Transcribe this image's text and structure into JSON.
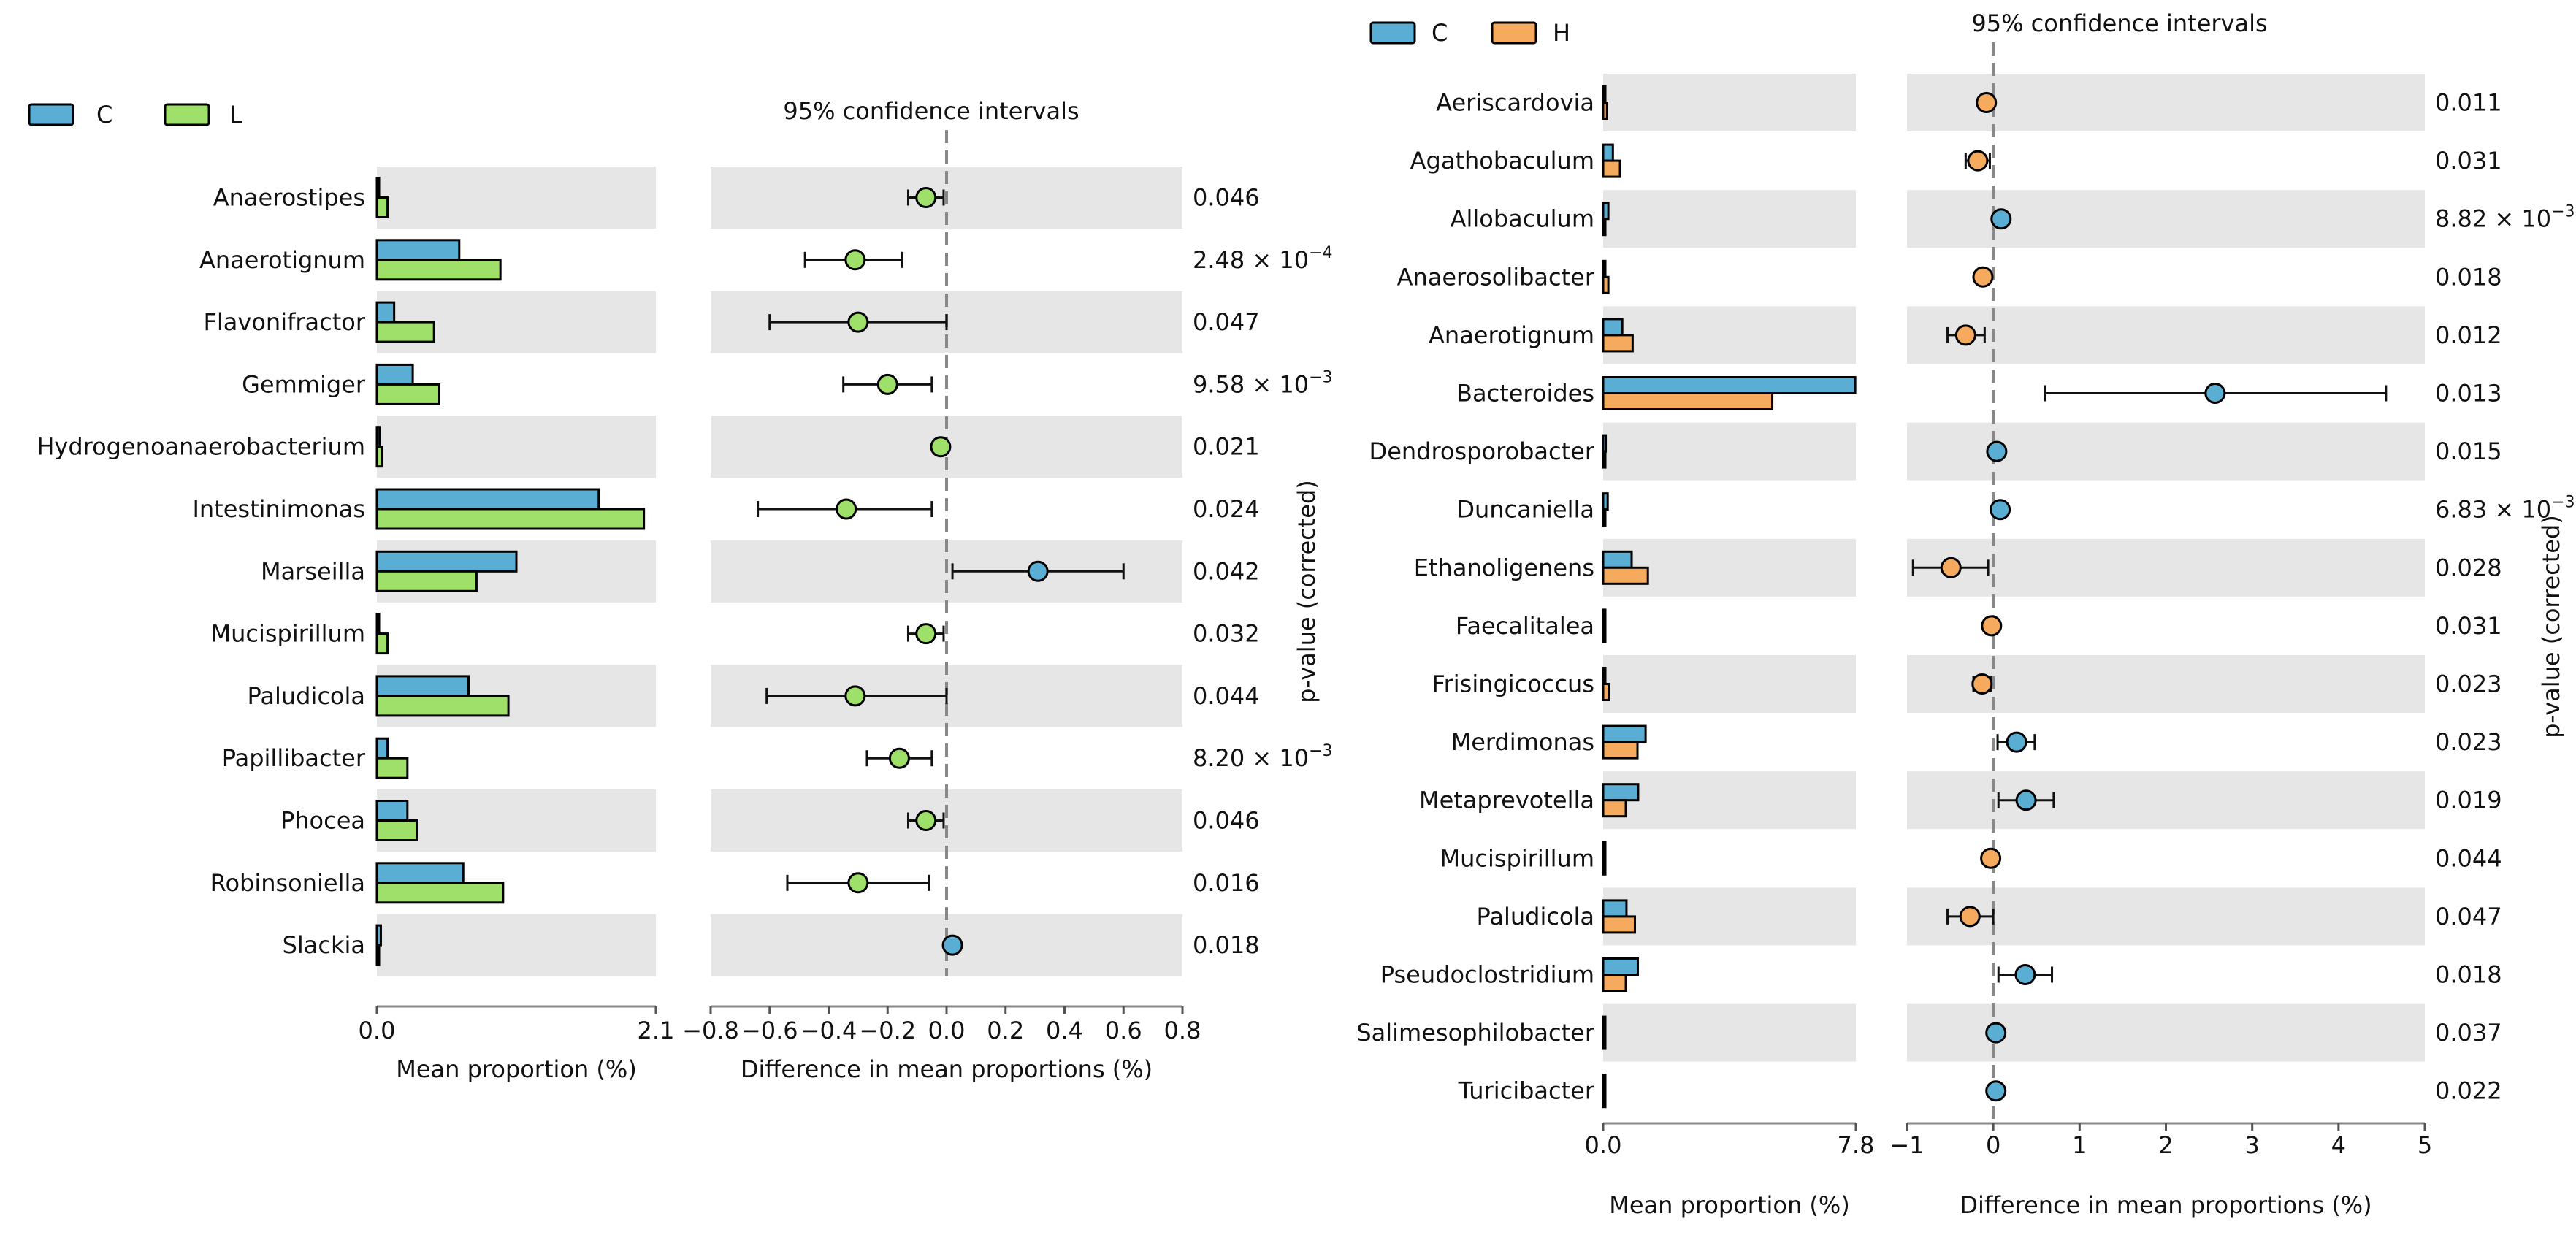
{
  "chart_data": [
    {
      "type": "extended_error_bar",
      "groups": [
        {
          "name": "C",
          "color": "#5aaed4"
        },
        {
          "name": "L",
          "color": "#9ee06a"
        }
      ],
      "ci_title": "95% confidence intervals",
      "bar_xlabel": "Mean proportion (%)",
      "diff_xlabel": "Difference in mean proportions (%)",
      "pvalue_label": "p-value (corrected)",
      "bar_xlim": [
        0.0,
        2.1
      ],
      "bar_ticks": [
        "0.0",
        "2.1"
      ],
      "diff_xlim": [
        -0.8,
        0.8
      ],
      "diff_ticks": [
        "−0.8",
        "−0.6",
        "−0.4",
        "−0.2",
        "0.0",
        "0.2",
        "0.4",
        "0.6",
        "0.8"
      ],
      "diff_tick_values": [
        -0.8,
        -0.6,
        -0.4,
        -0.2,
        0.0,
        0.2,
        0.4,
        0.6,
        0.8
      ],
      "rows": [
        {
          "name": "Anaerostipes",
          "g1": 0.01,
          "g2": 0.08,
          "diff": -0.07,
          "lo": -0.13,
          "hi": -0.01,
          "p_base": "0.046",
          "p_exp": ""
        },
        {
          "name": "Anaerotignum",
          "g1": 0.62,
          "g2": 0.93,
          "diff": -0.31,
          "lo": -0.48,
          "hi": -0.15,
          "p_base": "2.48 × 10",
          "p_exp": "−4"
        },
        {
          "name": "Flavonifractor",
          "g1": 0.13,
          "g2": 0.43,
          "diff": -0.3,
          "lo": -0.6,
          "hi": 0.0,
          "p_base": "0.047",
          "p_exp": ""
        },
        {
          "name": "Gemmiger",
          "g1": 0.27,
          "g2": 0.47,
          "diff": -0.2,
          "lo": -0.35,
          "hi": -0.05,
          "p_base": "9.58 × 10",
          "p_exp": "−3"
        },
        {
          "name": "Hydrogenoanaerobacterium",
          "g1": 0.02,
          "g2": 0.04,
          "diff": -0.02,
          "lo": -0.04,
          "hi": 0.0,
          "p_base": "0.021",
          "p_exp": ""
        },
        {
          "name": "Intestinimonas",
          "g1": 1.67,
          "g2": 2.01,
          "diff": -0.34,
          "lo": -0.64,
          "hi": -0.05,
          "p_base": "0.024",
          "p_exp": ""
        },
        {
          "name": "Marseilla",
          "g1": 1.05,
          "g2": 0.75,
          "diff": 0.31,
          "lo": 0.02,
          "hi": 0.6,
          "p_base": "0.042",
          "p_exp": ""
        },
        {
          "name": "Mucispirillum",
          "g1": 0.01,
          "g2": 0.08,
          "diff": -0.07,
          "lo": -0.13,
          "hi": -0.01,
          "p_base": "0.032",
          "p_exp": ""
        },
        {
          "name": "Paludicola",
          "g1": 0.69,
          "g2": 0.99,
          "diff": -0.31,
          "lo": -0.61,
          "hi": 0.0,
          "p_base": "0.044",
          "p_exp": ""
        },
        {
          "name": "Papillibacter",
          "g1": 0.08,
          "g2": 0.23,
          "diff": -0.16,
          "lo": -0.27,
          "hi": -0.05,
          "p_base": "8.20 × 10",
          "p_exp": "−3"
        },
        {
          "name": "Phocea",
          "g1": 0.23,
          "g2": 0.3,
          "diff": -0.07,
          "lo": -0.13,
          "hi": -0.01,
          "p_base": "0.046",
          "p_exp": ""
        },
        {
          "name": "Robinsoniella",
          "g1": 0.65,
          "g2": 0.95,
          "diff": -0.3,
          "lo": -0.54,
          "hi": -0.06,
          "p_base": "0.016",
          "p_exp": ""
        },
        {
          "name": "Slackia",
          "g1": 0.03,
          "g2": 0.0,
          "diff": 0.02,
          "lo": 0.02,
          "hi": 0.02,
          "p_base": "0.018",
          "p_exp": ""
        }
      ]
    },
    {
      "type": "extended_error_bar",
      "groups": [
        {
          "name": "C",
          "color": "#5aaed4"
        },
        {
          "name": "H",
          "color": "#f5aa5e"
        }
      ],
      "ci_title": "95% confidence intervals",
      "bar_xlabel": "Mean proportion (%)",
      "diff_xlabel": "Difference in mean proportions (%)",
      "pvalue_label": "p-value (corrected)",
      "bar_xlim": [
        0.0,
        7.8
      ],
      "bar_ticks": [
        "0.0",
        "7.8"
      ],
      "diff_xlim": [
        -1,
        5
      ],
      "diff_ticks": [
        "−1",
        "0",
        "1",
        "2",
        "3",
        "4",
        "5"
      ],
      "diff_tick_values": [
        -1,
        0,
        1,
        2,
        3,
        4,
        5
      ],
      "rows": [
        {
          "name": "Aeriscardovia",
          "g1": 0.02,
          "g2": 0.12,
          "diff": -0.08,
          "lo": -0.08,
          "hi": -0.08,
          "p_base": "0.011",
          "p_exp": ""
        },
        {
          "name": "Agathobaculum",
          "g1": 0.3,
          "g2": 0.52,
          "diff": -0.18,
          "lo": -0.32,
          "hi": -0.04,
          "p_base": "0.031",
          "p_exp": ""
        },
        {
          "name": "Allobaculum",
          "g1": 0.16,
          "g2": 0.0,
          "diff": 0.09,
          "lo": 0.09,
          "hi": 0.09,
          "p_base": "8.82 × 10",
          "p_exp": "−3"
        },
        {
          "name": "Anaerosolibacter",
          "g1": 0.05,
          "g2": 0.16,
          "diff": -0.12,
          "lo": -0.18,
          "hi": -0.06,
          "p_base": "0.018",
          "p_exp": ""
        },
        {
          "name": "Anaerotignum",
          "g1": 0.59,
          "g2": 0.91,
          "diff": -0.32,
          "lo": -0.53,
          "hi": -0.1,
          "p_base": "0.012",
          "p_exp": ""
        },
        {
          "name": "Bacteroides",
          "g1": 7.78,
          "g2": 5.22,
          "diff": 2.57,
          "lo": 0.6,
          "hi": 4.55,
          "p_base": "0.013",
          "p_exp": ""
        },
        {
          "name": "Dendrosporobacter",
          "g1": 0.08,
          "g2": 0.0,
          "diff": 0.04,
          "lo": 0.04,
          "hi": 0.04,
          "p_base": "0.015",
          "p_exp": ""
        },
        {
          "name": "Duncaniella",
          "g1": 0.14,
          "g2": 0.0,
          "diff": 0.08,
          "lo": 0.08,
          "hi": 0.08,
          "p_base": "6.83 × 10",
          "p_exp": "−3"
        },
        {
          "name": "Ethanoligenens",
          "g1": 0.88,
          "g2": 1.38,
          "diff": -0.49,
          "lo": -0.93,
          "hi": -0.06,
          "p_base": "0.028",
          "p_exp": ""
        },
        {
          "name": "Faecalitalea",
          "g1": 0.0,
          "g2": 0.04,
          "diff": -0.02,
          "lo": -0.02,
          "hi": -0.02,
          "p_base": "0.031",
          "p_exp": ""
        },
        {
          "name": "Frisingicoccus",
          "g1": 0.03,
          "g2": 0.17,
          "diff": -0.13,
          "lo": -0.23,
          "hi": -0.03,
          "p_base": "0.023",
          "p_exp": ""
        },
        {
          "name": "Merdimonas",
          "g1": 1.31,
          "g2": 1.06,
          "diff": 0.27,
          "lo": 0.05,
          "hi": 0.48,
          "p_base": "0.023",
          "p_exp": ""
        },
        {
          "name": "Metaprevotella",
          "g1": 1.08,
          "g2": 0.7,
          "diff": 0.38,
          "lo": 0.06,
          "hi": 0.7,
          "p_base": "0.019",
          "p_exp": ""
        },
        {
          "name": "Mucispirillum",
          "g1": 0.0,
          "g2": 0.04,
          "diff": -0.03,
          "lo": -0.03,
          "hi": -0.03,
          "p_base": "0.044",
          "p_exp": ""
        },
        {
          "name": "Paludicola",
          "g1": 0.72,
          "g2": 0.98,
          "diff": -0.27,
          "lo": -0.53,
          "hi": 0.0,
          "p_base": "0.047",
          "p_exp": ""
        },
        {
          "name": "Pseudoclostridium",
          "g1": 1.07,
          "g2": 0.7,
          "diff": 0.37,
          "lo": 0.06,
          "hi": 0.68,
          "p_base": "0.018",
          "p_exp": ""
        },
        {
          "name": "Salimesophilobacter",
          "g1": 0.02,
          "g2": 0.0,
          "diff": 0.03,
          "lo": 0.03,
          "hi": 0.03,
          "p_base": "0.037",
          "p_exp": ""
        },
        {
          "name": "Turicibacter",
          "g1": 0.04,
          "g2": 0.0,
          "diff": 0.03,
          "lo": 0.03,
          "hi": 0.03,
          "p_base": "0.022",
          "p_exp": ""
        }
      ]
    }
  ]
}
